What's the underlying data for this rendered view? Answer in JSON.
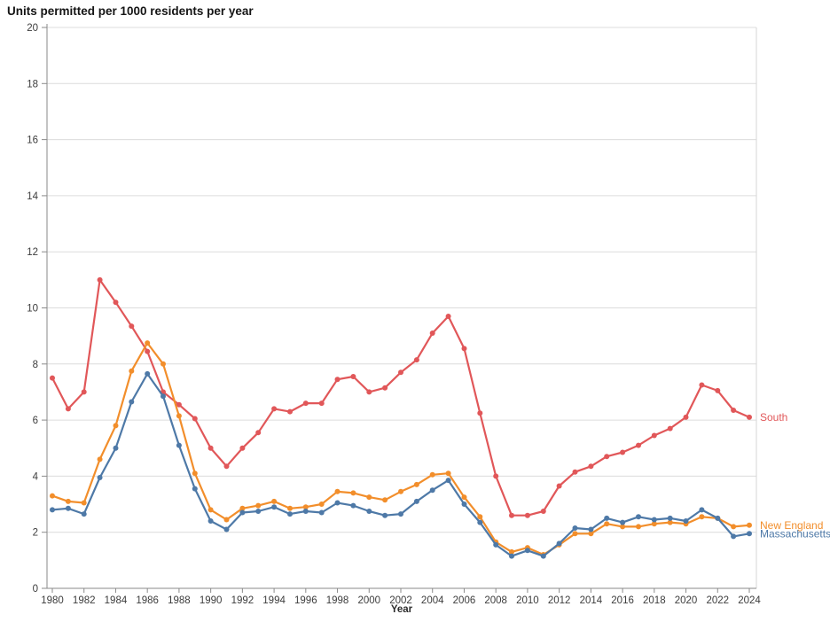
{
  "chart_data": {
    "type": "line",
    "title": "Units permitted per 1000 residents per year",
    "xlabel": "Year",
    "ylabel": "",
    "grid": "horizontal-only",
    "legend_position": "right-of-line-ends",
    "ylim": [
      0,
      20
    ],
    "ytick_step": 2,
    "ytick_labels": [
      "0",
      "2",
      "4",
      "6",
      "8",
      "10",
      "12",
      "14",
      "16",
      "18",
      "20"
    ],
    "xtick_step": 2,
    "xtick_labels": [
      "1980",
      "1982",
      "1984",
      "1986",
      "1988",
      "1990",
      "1992",
      "1994",
      "1996",
      "1998",
      "2000",
      "2002",
      "2004",
      "2006",
      "2008",
      "2010",
      "2012",
      "2014",
      "2016",
      "2018",
      "2020",
      "2022",
      "2024"
    ],
    "x": [
      1980,
      1981,
      1982,
      1983,
      1984,
      1985,
      1986,
      1987,
      1988,
      1989,
      1990,
      1991,
      1992,
      1993,
      1994,
      1995,
      1996,
      1997,
      1998,
      1999,
      2000,
      2001,
      2002,
      2003,
      2004,
      2005,
      2006,
      2007,
      2008,
      2009,
      2010,
      2011,
      2012,
      2013,
      2014,
      2015,
      2016,
      2017,
      2018,
      2019,
      2020,
      2021,
      2022,
      2023,
      2024
    ],
    "series": [
      {
        "name": "South",
        "color": "#E15759",
        "values": [
          7.5,
          6.4,
          7.0,
          11.0,
          10.2,
          9.35,
          8.45,
          7.0,
          6.55,
          6.05,
          5.0,
          4.35,
          5.0,
          5.55,
          6.4,
          6.3,
          6.6,
          6.6,
          7.45,
          7.55,
          7.0,
          7.15,
          7.7,
          8.15,
          9.1,
          9.7,
          8.55,
          6.25,
          4.0,
          2.6,
          2.6,
          2.75,
          3.65,
          4.15,
          4.35,
          4.7,
          4.85,
          5.1,
          5.45,
          5.7,
          6.1,
          7.25,
          7.05,
          6.35,
          6.1
        ]
      },
      {
        "name": "New England",
        "color": "#F28E2B",
        "values": [
          3.3,
          3.1,
          3.05,
          4.6,
          5.8,
          7.75,
          8.75,
          8.0,
          6.15,
          4.1,
          2.8,
          2.45,
          2.85,
          2.95,
          3.1,
          2.85,
          2.9,
          3.0,
          3.45,
          3.4,
          3.25,
          3.15,
          3.45,
          3.7,
          4.05,
          4.1,
          3.25,
          2.55,
          1.65,
          1.3,
          1.45,
          1.2,
          1.55,
          1.95,
          1.95,
          2.3,
          2.2,
          2.2,
          2.3,
          2.35,
          2.3,
          2.55,
          2.5,
          2.2,
          2.25
        ]
      },
      {
        "name": "Massachusetts",
        "color": "#4E79A7",
        "values": [
          2.8,
          2.85,
          2.65,
          3.95,
          5.0,
          6.65,
          7.65,
          6.85,
          5.1,
          3.55,
          2.4,
          2.1,
          2.7,
          2.75,
          2.9,
          2.65,
          2.75,
          2.7,
          3.05,
          2.95,
          2.75,
          2.6,
          2.65,
          3.1,
          3.5,
          3.85,
          3.0,
          2.35,
          1.55,
          1.15,
          1.35,
          1.15,
          1.6,
          2.15,
          2.1,
          2.5,
          2.35,
          2.55,
          2.45,
          2.5,
          2.4,
          2.8,
          2.5,
          1.85,
          1.95
        ]
      }
    ],
    "axis_colors": {
      "axis_line": "#8a8a8a",
      "gridline": "#dcdcdc",
      "plot_right_border": "#d6d6d6",
      "tick_text": "#3c3c3c"
    }
  }
}
